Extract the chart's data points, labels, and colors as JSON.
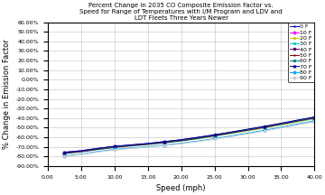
{
  "title": "Percent Change in 2035 CO Composite Emission Factor vs.\nSpeed for Range of Temperatures with I/M Program and LDV and\nLDT Fleets Three Years Newer",
  "xlabel": "Speed (mph)",
  "ylabel": "% Change in Emission Factor",
  "xlim": [
    0,
    40
  ],
  "ylim": [
    -0.9,
    0.6
  ],
  "yticks": [
    -0.9,
    -0.8,
    -0.7,
    -0.6,
    -0.5,
    -0.4,
    -0.3,
    -0.2,
    -0.1,
    0.0,
    0.1,
    0.2,
    0.3,
    0.4,
    0.5,
    0.6
  ],
  "xticks": [
    0,
    5,
    10,
    15,
    20,
    25,
    30,
    35,
    40
  ],
  "ytick_labels": [
    "-90.00%",
    "-80.00%",
    "-70.00%",
    "-60.00%",
    "-50.00%",
    "-40.00%",
    "-30.00%",
    "-20.00%",
    "-10.00%",
    "0.00%",
    "10.00%",
    "20.00%",
    "30.00%",
    "40.00%",
    "50.00%",
    "60.00%"
  ],
  "xtick_labels": [
    "0.00",
    "5.00",
    "10.00",
    "15.00",
    "20.00",
    "25.00",
    "30.00",
    "35.00",
    "40.00"
  ],
  "temperatures": [
    0,
    10,
    20,
    30,
    40,
    50,
    60,
    70,
    80,
    90
  ],
  "colors_map": {
    "0": "#0000CC",
    "10": "#FF00FF",
    "20": "#CCCC00",
    "30": "#00CCCC",
    "40": "#660066",
    "50": "#8B0000",
    "60": "#008080",
    "70": "#000099",
    "80": "#00AAFF",
    "90": "#CCCCCC"
  },
  "markers_map": {
    "0": "+",
    "10": "o",
    "20": "*",
    "30": "x",
    "40": "s",
    "50": "+",
    "60": "x",
    "70": "^",
    "80": "o",
    "90": "s"
  },
  "speeds": [
    2.5,
    5.0,
    7.5,
    10.0,
    12.5,
    15.0,
    17.5,
    20.0,
    22.5,
    25.0,
    27.5,
    30.0,
    32.5,
    35.0,
    37.5,
    40.0
  ],
  "data": {
    "0": [
      -0.755,
      -0.74,
      -0.715,
      -0.695,
      -0.68,
      -0.665,
      -0.645,
      -0.625,
      -0.6,
      -0.575,
      -0.548,
      -0.52,
      -0.492,
      -0.462,
      -0.43,
      -0.4
    ],
    "10": [
      -0.76,
      -0.742,
      -0.718,
      -0.698,
      -0.683,
      -0.668,
      -0.65,
      -0.632,
      -0.608,
      -0.582,
      -0.555,
      -0.527,
      -0.498,
      -0.467,
      -0.435,
      -0.405
    ],
    "20": [
      -0.77,
      -0.752,
      -0.728,
      -0.706,
      -0.69,
      -0.675,
      -0.658,
      -0.64,
      -0.616,
      -0.59,
      -0.562,
      -0.533,
      -0.503,
      -0.472,
      -0.44,
      -0.408
    ],
    "30": [
      -0.77,
      -0.752,
      -0.728,
      -0.706,
      -0.69,
      -0.675,
      -0.658,
      -0.638,
      -0.614,
      -0.587,
      -0.558,
      -0.529,
      -0.499,
      -0.467,
      -0.434,
      -0.402
    ],
    "40": [
      -0.768,
      -0.75,
      -0.726,
      -0.704,
      -0.688,
      -0.673,
      -0.656,
      -0.636,
      -0.611,
      -0.584,
      -0.555,
      -0.525,
      -0.495,
      -0.463,
      -0.43,
      -0.398
    ],
    "50": [
      -0.765,
      -0.747,
      -0.722,
      -0.7,
      -0.685,
      -0.67,
      -0.652,
      -0.632,
      -0.607,
      -0.58,
      -0.551,
      -0.521,
      -0.491,
      -0.459,
      -0.426,
      -0.394
    ],
    "60": [
      -0.762,
      -0.744,
      -0.719,
      -0.697,
      -0.682,
      -0.667,
      -0.649,
      -0.629,
      -0.604,
      -0.577,
      -0.548,
      -0.518,
      -0.488,
      -0.456,
      -0.423,
      -0.391
    ],
    "70": [
      -0.758,
      -0.741,
      -0.716,
      -0.694,
      -0.679,
      -0.664,
      -0.646,
      -0.626,
      -0.601,
      -0.574,
      -0.545,
      -0.515,
      -0.485,
      -0.453,
      -0.42,
      -0.388
    ],
    "80": [
      -0.795,
      -0.775,
      -0.748,
      -0.726,
      -0.711,
      -0.697,
      -0.681,
      -0.662,
      -0.639,
      -0.613,
      -0.585,
      -0.556,
      -0.526,
      -0.494,
      -0.461,
      -0.428
    ],
    "90": [
      -0.8,
      -0.78,
      -0.754,
      -0.732,
      -0.716,
      -0.702,
      -0.686,
      -0.668,
      -0.645,
      -0.62,
      -0.593,
      -0.564,
      -0.535,
      -0.503,
      -0.47,
      -0.438
    ]
  },
  "bg_color": "#FFFFFF",
  "grid_color": "#C0C0C0",
  "title_fontsize": 5.0,
  "label_fontsize": 6.0,
  "tick_fontsize": 4.5,
  "legend_fontsize": 4.5
}
